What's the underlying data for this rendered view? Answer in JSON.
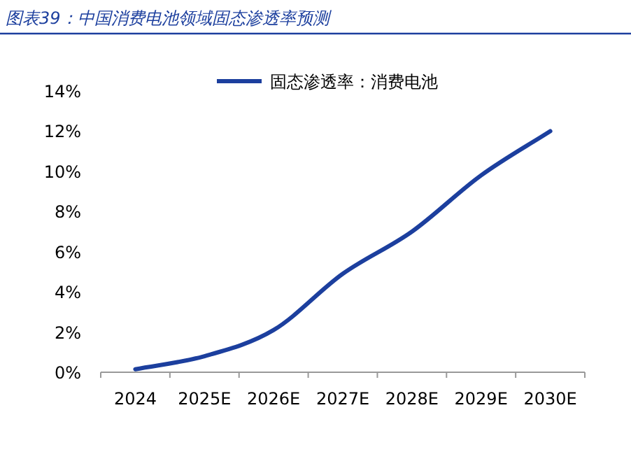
{
  "chart_data": {
    "type": "line",
    "title": "图表39：中国消费电池领域固态渗透率预测",
    "categories": [
      "2024",
      "2025E",
      "2026E",
      "2027E",
      "2028E",
      "2029E",
      "2030E"
    ],
    "series": [
      {
        "name": "固态渗透率：消费电池",
        "color": "#1c3f9e",
        "values": [
          0.15,
          0.8,
          2.1,
          4.9,
          7.0,
          9.8,
          12.0
        ]
      }
    ],
    "ylim": [
      0,
      14
    ],
    "yticks": [
      {
        "value": 0,
        "label": "0%"
      },
      {
        "value": 2,
        "label": "2%"
      },
      {
        "value": 4,
        "label": "4%"
      },
      {
        "value": 6,
        "label": "6%"
      },
      {
        "value": 8,
        "label": "8%"
      },
      {
        "value": 10,
        "label": "10%"
      },
      {
        "value": 12,
        "label": "12%"
      },
      {
        "value": 14,
        "label": "14%"
      }
    ],
    "grid": false,
    "legend": "top",
    "marker": "none",
    "line_style": "solid"
  }
}
